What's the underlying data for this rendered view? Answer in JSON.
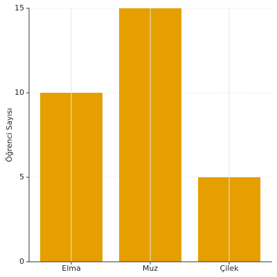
{
  "chart_data": {
    "type": "bar",
    "y_label": "Öğrenci Sayısı",
    "categories": [
      "Elma",
      "Muz",
      "Çilek"
    ],
    "values": [
      10,
      15,
      5
    ],
    "color": "#e69f00",
    "ylim": [
      0,
      15
    ],
    "yticks": [
      0,
      5,
      10,
      15
    ],
    "grid": true
  }
}
